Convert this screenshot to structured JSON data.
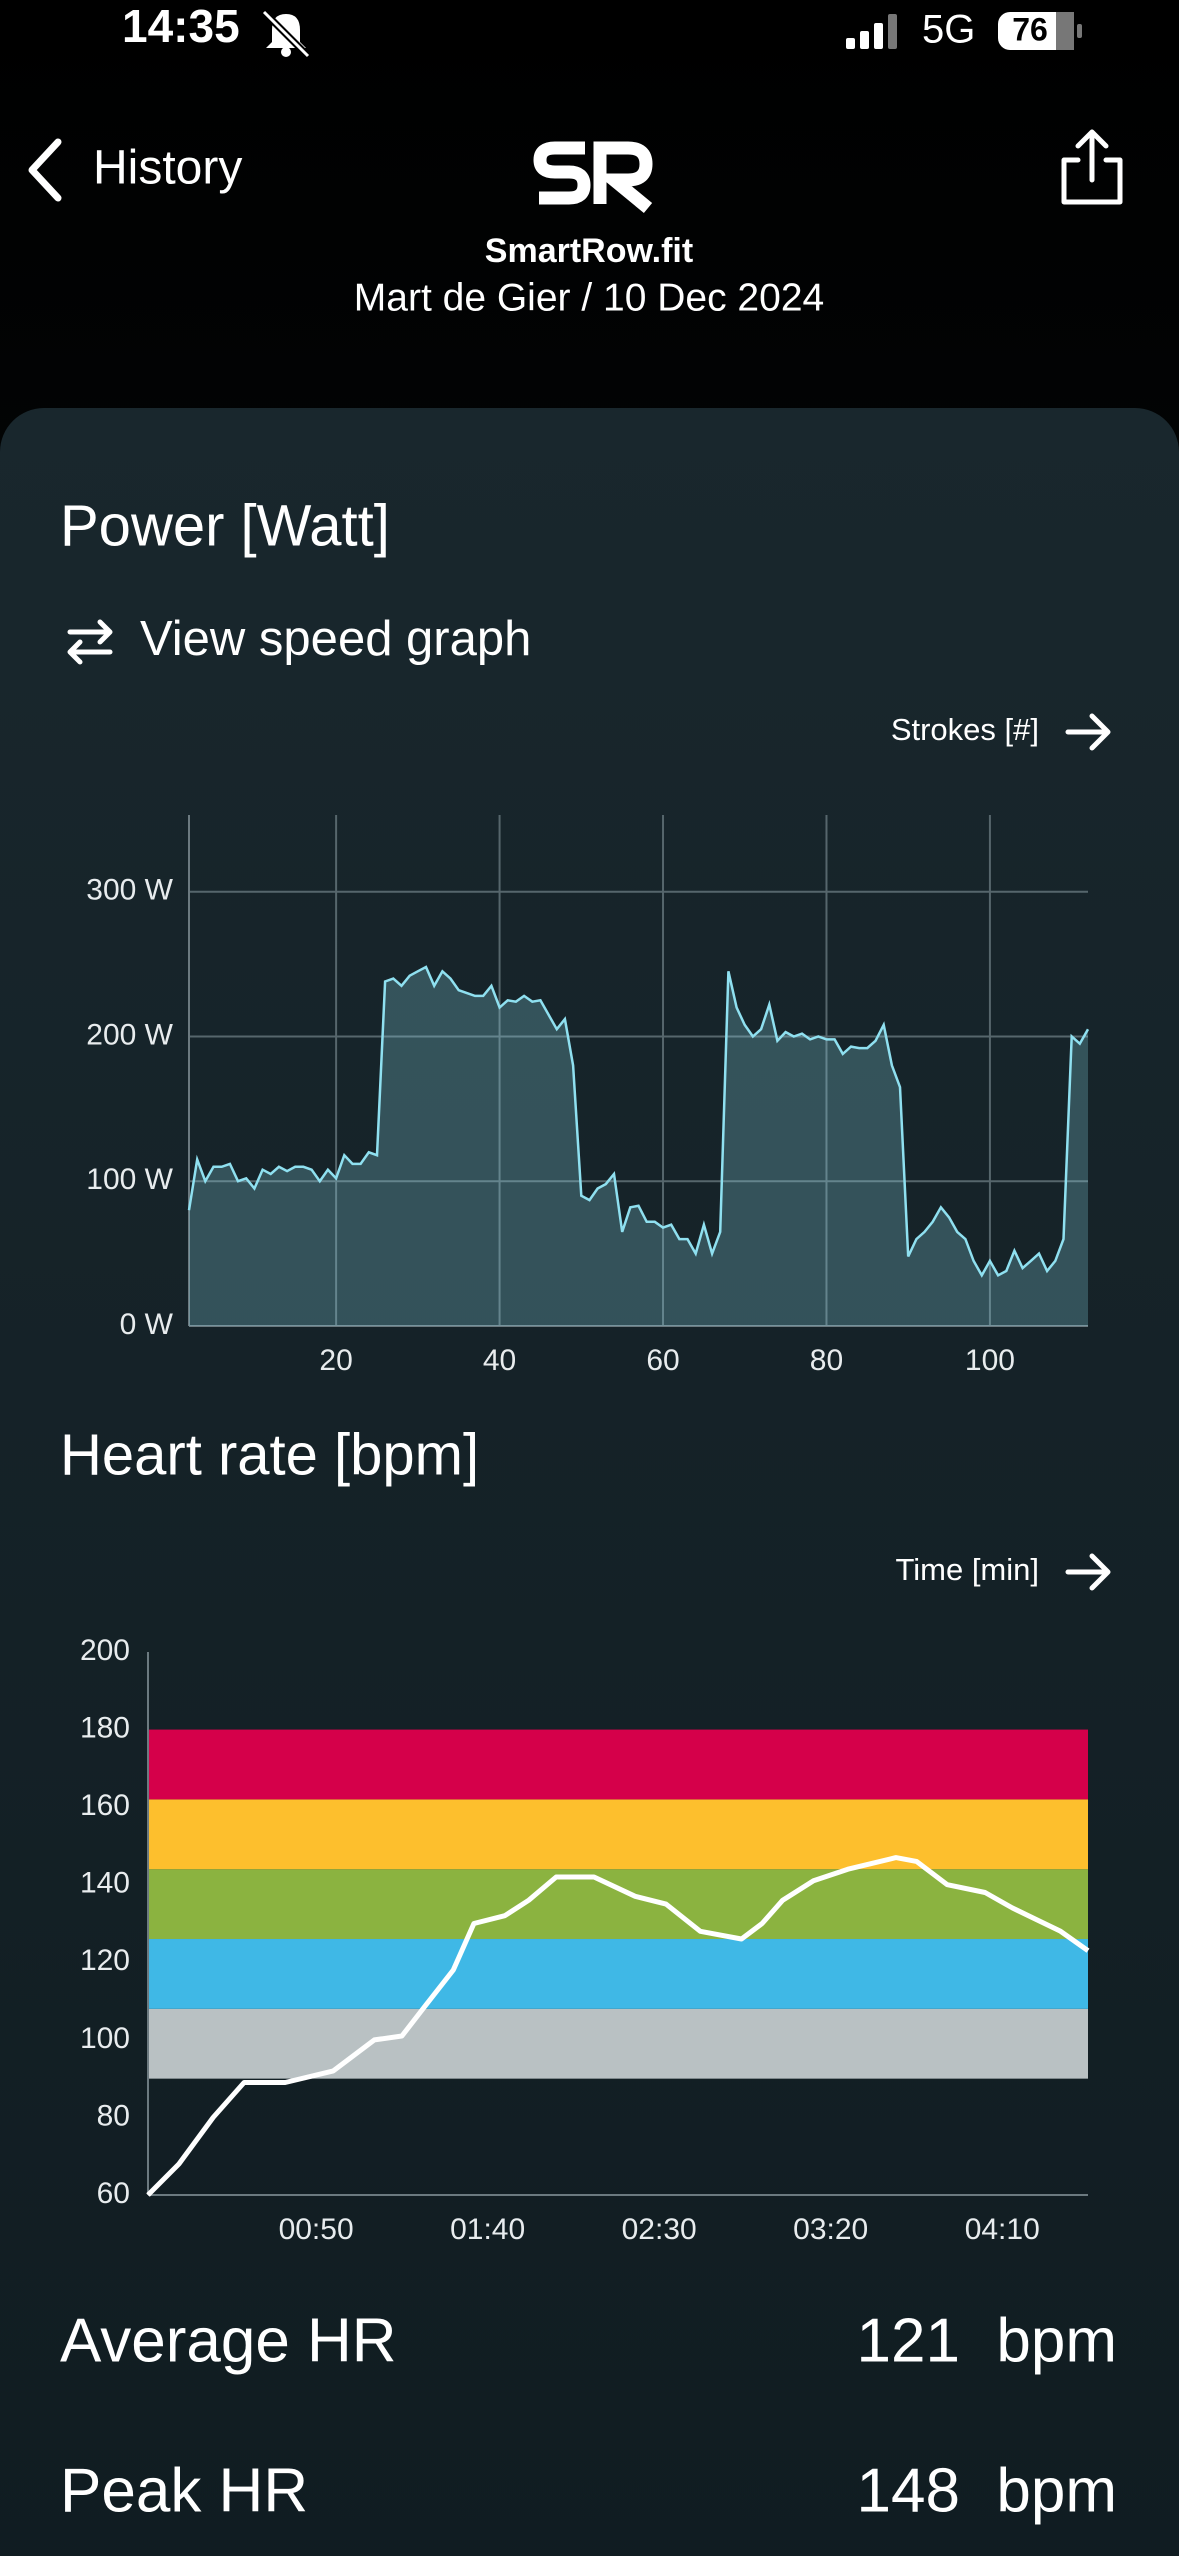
{
  "status_bar": {
    "time": "14:35",
    "network": "5G",
    "battery": "76"
  },
  "nav": {
    "back": "History",
    "app": "SmartRow.fit",
    "subtitle": "Mart de Gier / 10 Dec 2024"
  },
  "chart_data": [
    {
      "type": "area",
      "title": "Power [Watt]",
      "toggle": "View speed graph",
      "x_switch": "Strokes [#]",
      "color": "#8fe0f0",
      "grid": true,
      "xlim": [
        2,
        112
      ],
      "xticks": [
        20,
        40,
        60,
        80,
        100
      ],
      "ylim": [
        0,
        353
      ],
      "yticks": [
        {
          "value": 0,
          "label": "0 W"
        },
        {
          "value": 100,
          "label": "100 W"
        },
        {
          "value": 200,
          "label": "200 W"
        },
        {
          "value": 300,
          "label": "300 W"
        }
      ],
      "x": [
        2,
        3,
        4,
        5,
        6,
        7,
        8,
        9,
        10,
        11,
        12,
        13,
        14,
        15,
        16,
        17,
        18,
        19,
        20,
        21,
        22,
        23,
        24,
        25,
        26,
        27,
        28,
        29,
        30,
        31,
        32,
        33,
        34,
        35,
        36,
        37,
        38,
        39,
        40,
        41,
        42,
        43,
        44,
        45,
        46,
        47,
        48,
        49,
        50,
        51,
        52,
        53,
        54,
        55,
        56,
        57,
        58,
        59,
        60,
        61,
        62,
        63,
        64,
        65,
        66,
        67,
        68,
        69,
        70,
        71,
        72,
        73,
        74,
        75,
        76,
        77,
        78,
        79,
        80,
        81,
        82,
        83,
        84,
        85,
        86,
        87,
        88,
        89,
        90,
        91,
        92,
        93,
        94,
        95,
        96,
        97,
        98,
        99,
        100,
        101,
        102,
        103,
        104,
        105,
        106,
        107,
        108,
        109,
        110,
        111,
        112
      ],
      "values": [
        80,
        115,
        100,
        110,
        110,
        112,
        100,
        102,
        95,
        108,
        105,
        110,
        107,
        110,
        110,
        108,
        100,
        108,
        102,
        118,
        112,
        112,
        120,
        118,
        238,
        240,
        235,
        242,
        245,
        248,
        235,
        245,
        240,
        232,
        230,
        228,
        228,
        235,
        220,
        225,
        224,
        228,
        224,
        225,
        215,
        205,
        212,
        180,
        90,
        87,
        95,
        98,
        105,
        65,
        82,
        83,
        72,
        72,
        68,
        70,
        60,
        60,
        50,
        70,
        50,
        65,
        245,
        220,
        208,
        200,
        205,
        222,
        197,
        203,
        200,
        202,
        198,
        200,
        198,
        198,
        188,
        193,
        192,
        192,
        197,
        208,
        180,
        165,
        48,
        60,
        65,
        72,
        82,
        75,
        65,
        60,
        45,
        35,
        45,
        35,
        38,
        52,
        40,
        45,
        50,
        38,
        45,
        60,
        200,
        195,
        205
      ]
    },
    {
      "type": "line",
      "title": "Heart rate [bpm]",
      "x_switch": "Time [min]",
      "color": "#ffffff",
      "grid": false,
      "xlim": [
        1,
        275
      ],
      "xticks": [
        {
          "value": 50,
          "label": "00:50"
        },
        {
          "value": 100,
          "label": "01:40"
        },
        {
          "value": 150,
          "label": "02:30"
        },
        {
          "value": 200,
          "label": "03:20"
        },
        {
          "value": 250,
          "label": "04:10"
        }
      ],
      "ylim": [
        60,
        200
      ],
      "yticks": [
        60,
        80,
        100,
        120,
        140,
        160,
        180,
        200
      ],
      "zones": [
        {
          "from": 90,
          "to": 108,
          "color": "#b9c1c3"
        },
        {
          "from": 108,
          "to": 126,
          "color": "#3fb8e6"
        },
        {
          "from": 126,
          "to": 144,
          "color": "#8bb340"
        },
        {
          "from": 144,
          "to": 162,
          "color": "#fdbf2d"
        },
        {
          "from": 162,
          "to": 180,
          "color": "#d5004a"
        }
      ],
      "x": [
        1,
        10,
        20,
        29,
        41,
        55,
        67,
        75,
        82,
        90,
        96,
        105,
        112,
        120,
        131,
        143,
        152,
        162,
        174,
        180,
        186,
        195,
        205,
        219,
        225,
        234,
        245,
        253,
        260,
        267,
        275
      ],
      "values": [
        60,
        68,
        80,
        89,
        89,
        92,
        100,
        101,
        109,
        118,
        130,
        132,
        136,
        142,
        142,
        137,
        135,
        128,
        126,
        130,
        136,
        141,
        144,
        147,
        146,
        140,
        138,
        134,
        131,
        128,
        123
      ]
    }
  ],
  "stats": [
    {
      "label": "Average HR",
      "value": 121,
      "unit": "bpm"
    },
    {
      "label": "Peak HR",
      "value": 148,
      "unit": "bpm"
    }
  ]
}
